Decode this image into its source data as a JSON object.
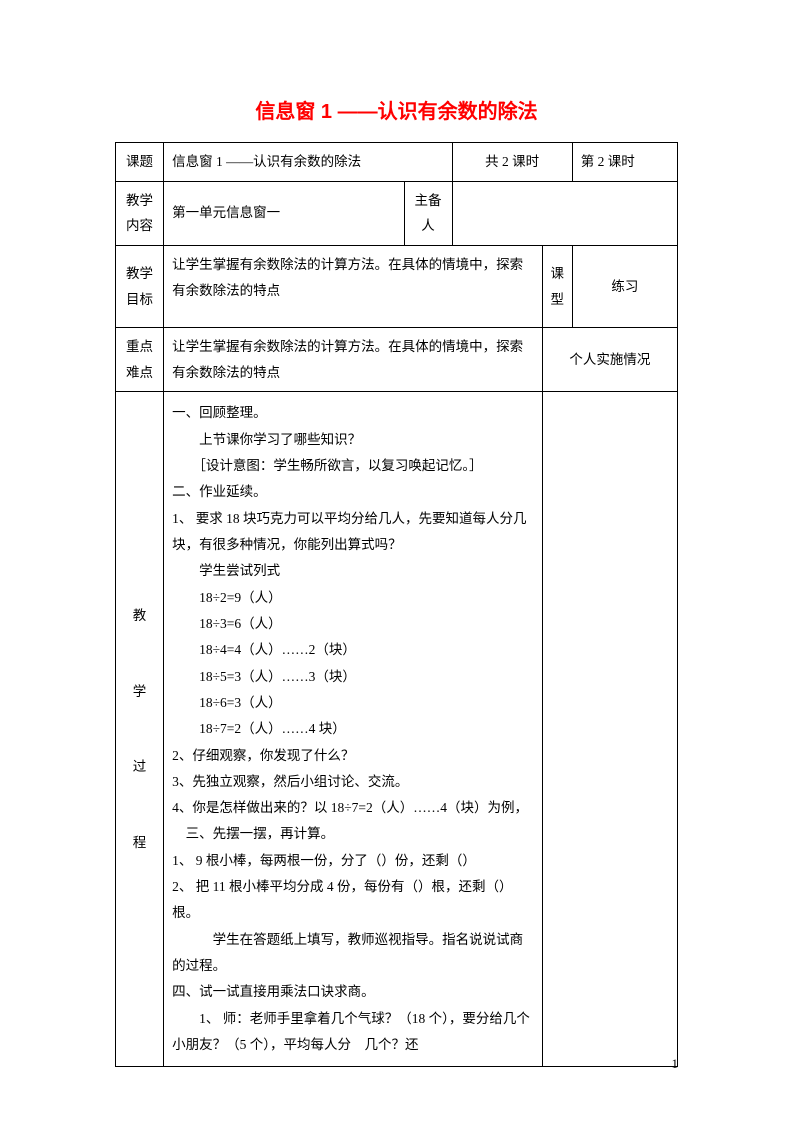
{
  "title": "信息窗 1 ——认识有余数的除法",
  "row1": {
    "label": "课题",
    "topic": "信息窗 1 ——认识有余数的除法",
    "total": "共 2 课时",
    "period": "第 2 课时"
  },
  "row2": {
    "label": "教学\n内容",
    "content": "第一单元信息窗一",
    "preparer_label": "主备人",
    "preparer": ""
  },
  "row3": {
    "label": "教学\n目标",
    "content": "让学生掌握有余数除法的计算方法。在具体的情境中，探索有余数除法的特点",
    "type_label": "课\n型",
    "type_value": "练习"
  },
  "row4": {
    "label": "重点\n难点",
    "content": "让学生掌握有余数除法的计算方法。在具体的情境中，探索有余数除法的特点",
    "impl": "个人实施情况"
  },
  "process": {
    "label": "教\n\n学\n\n过\n\n程",
    "lines": [
      "一、回顾整理。",
      "　　上节课你学习了哪些知识？",
      "　　［设计意图：学生畅所欲言，以复习唤起记忆。］",
      "二、作业延续。",
      "1、 要求 18 块巧克力可以平均分给几人，先要知道每人分几块，有很多种情况，你能列出算式吗？",
      "　　学生尝试列式",
      "　　18÷2=9（人）",
      "　　18÷3=6（人）",
      "　　18÷4=4（人）……2（块）",
      "　　18÷5=3（人）……3（块）",
      "　　18÷6=3（人）",
      "　　18÷7=2（人）……4 块）",
      "2、仔细观察，你发现了什么？",
      "3、先独立观察，然后小组讨论、交流。",
      "4、你是怎样做出来的？以 18÷7=2（人）……4（块）为例，",
      "　三、先摆一摆，再计算。",
      "1、 9 根小棒，每两根一份，分了（）份，还剩（）",
      "2、 把 11 根小棒平均分成 4 份，每份有（）根，还剩（）根。",
      "　　　学生在答题纸上填写，教师巡视指导。指名说说试商的过程。",
      "四、试一试直接用乘法口诀求商。",
      "　　1、 师：老师手里拿着几个气球？（18 个），要分给几个小朋友？（5 个），平均每人分　几个？还"
    ],
    "notes": ""
  },
  "pageNumber": "1",
  "style": {
    "title_color": "#ff0000",
    "title_fontsize": 20,
    "body_fontsize": 13.5,
    "border_color": "#000000",
    "background": "#ffffff"
  }
}
